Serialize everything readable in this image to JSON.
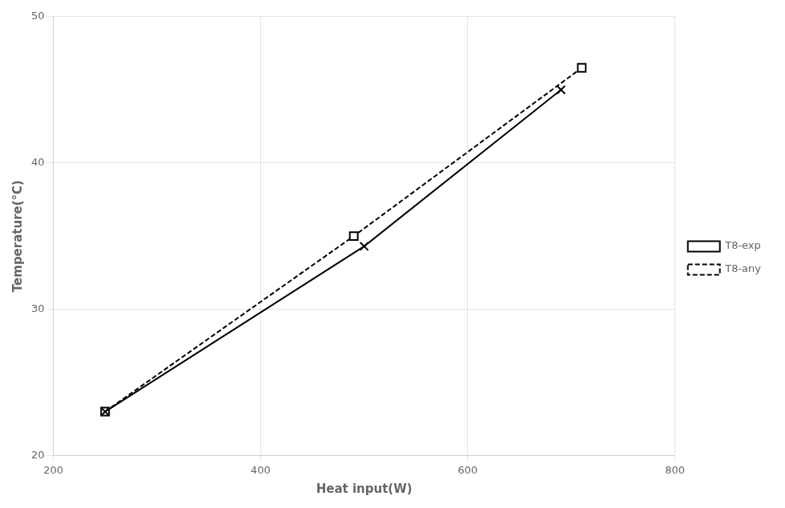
{
  "chart_data": {
    "type": "line",
    "xlabel": "Heat input(W)",
    "ylabel": "Temperature(°C)",
    "xlim": [
      200,
      800
    ],
    "ylim": [
      20,
      50
    ],
    "xticks": [
      200,
      400,
      600,
      800
    ],
    "yticks": [
      20,
      30,
      40,
      50
    ],
    "grid": true,
    "legend": "right",
    "series": [
      {
        "name": "T8-exp",
        "color": "#000000",
        "marker": "x",
        "line_style": "solid",
        "x": [
          250,
          500,
          690
        ],
        "values": [
          23.0,
          34.3,
          45.0
        ]
      },
      {
        "name": "T8-any",
        "color": "#000000",
        "marker": "square",
        "line_style": "dashed",
        "x": [
          250,
          490,
          710
        ],
        "values": [
          23.0,
          35.0,
          46.5
        ]
      }
    ]
  }
}
